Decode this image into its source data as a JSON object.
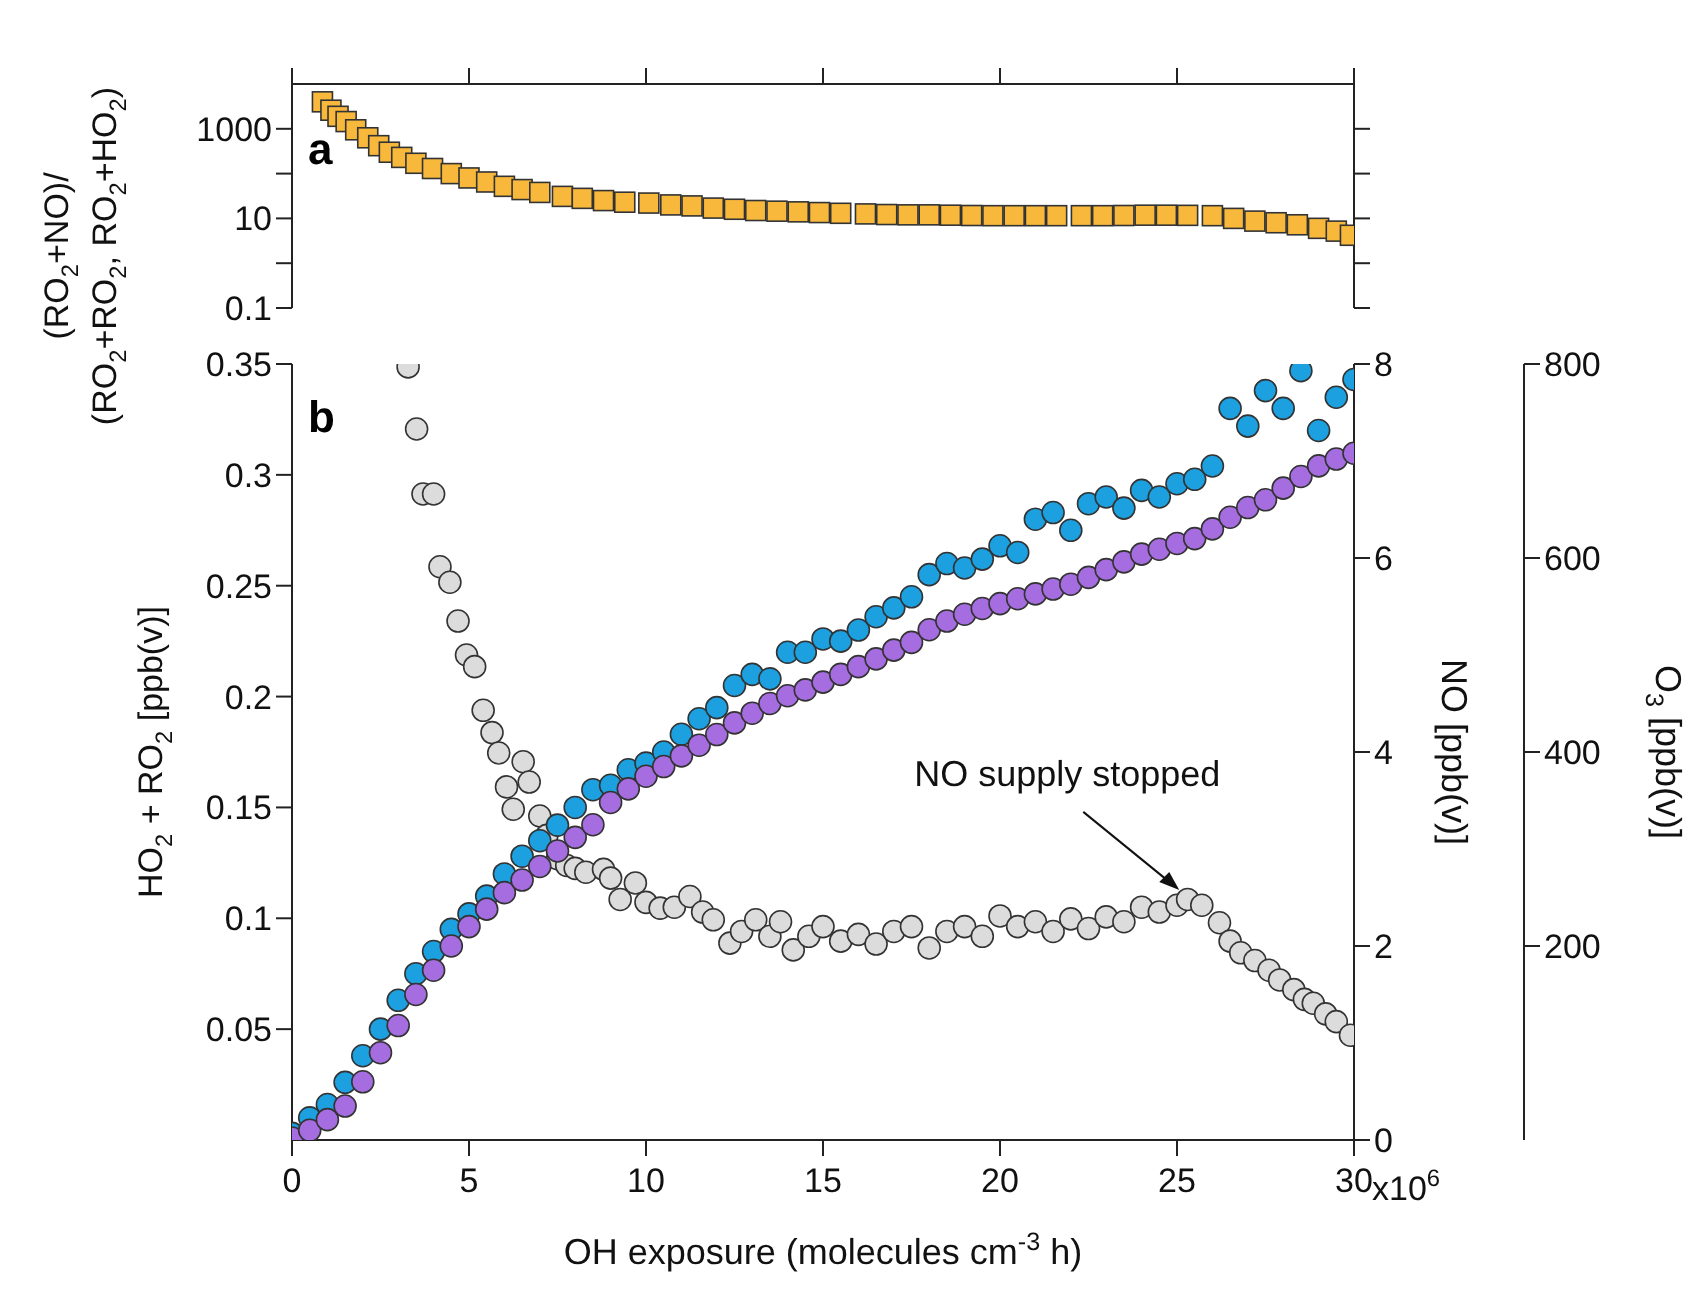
{
  "chart_data": [
    {
      "type": "scatter",
      "annotations": [
        "a"
      ],
      "ylabel": "(RO$_{2}$+NO)/\n(RO$_{2}$+RO$_{2}$, RO$_{2}$+HO$_{2}$)",
      "marker": "square",
      "log": "y",
      "tick_labels": "y",
      "xlim": [
        0,
        30
      ],
      "xticks": [
        0,
        5,
        10,
        15,
        20,
        25,
        30
      ],
      "ylim": [
        0.1,
        10000
      ],
      "yticks": [
        0.1,
        {
          "value": 1,
          "label": null
        },
        10,
        {
          "value": 100,
          "label": null
        },
        1000
      ],
      "series": [
        {
          "color": "#f7b83c",
          "x": [
            0.86,
            1.1,
            1.3,
            1.53,
            1.8,
            2.14,
            2.45,
            2.75,
            3.1,
            3.5,
            3.97,
            4.5,
            5.0,
            5.5,
            6.0,
            6.5,
            7.0,
            7.64,
            8.2,
            8.8,
            9.4,
            10.08,
            10.7,
            11.3,
            11.9,
            12.5,
            13.1,
            13.7,
            14.3,
            14.9,
            15.5,
            16.2,
            16.8,
            17.4,
            18,
            18.6,
            19.2,
            19.8,
            20.4,
            21,
            21.6,
            22.3,
            22.9,
            23.5,
            24.1,
            24.7,
            25.3,
            26,
            26.6,
            27.2,
            27.8,
            28.4,
            29,
            29.5,
            29.9
          ],
          "values": [
            4000,
            2600,
            1900,
            1450,
            950,
            630,
            420,
            300,
            230,
            170,
            130,
            100,
            80,
            65,
            52,
            44,
            38,
            31,
            28,
            25,
            23,
            22,
            20,
            19,
            17,
            16,
            15,
            14.5,
            14,
            13.5,
            13,
            12.6,
            12.2,
            12,
            12,
            11.8,
            11.6,
            11.5,
            11.5,
            11.5,
            11.5,
            11.5,
            11.5,
            11.6,
            11.8,
            11.8,
            11.7,
            11.5,
            10,
            8.7,
            8,
            7.2,
            6,
            5.2,
            4.2
          ]
        }
      ]
    },
    {
      "type": "scatter",
      "annotations": [
        "b",
        "NO supply stopped",
        "x10$^{6}$"
      ],
      "xlabel": "OH exposure (molecules cm$^{-3}$ h)",
      "ylabel": "HO$_{2}$ + RO$_{2}$ [ppb(v)]",
      "y2label": "NO [ppb(v)]",
      "y3label": "O$_{3}$ [ppb(v)]",
      "marker": "circle",
      "xlim": [
        0,
        30
      ],
      "xticks": [
        0,
        5,
        10,
        15,
        20,
        25,
        30
      ],
      "ylim": [
        0,
        0.35
      ],
      "yticks": [
        0.05,
        0.1,
        0.15,
        0.2,
        0.25,
        0.3,
        0.35
      ],
      "y2lim": [
        0,
        8
      ],
      "y2ticks": [
        0,
        2,
        4,
        6,
        8
      ],
      "y3lim": [
        0,
        800
      ],
      "y3ticks": [
        200,
        400,
        600,
        800
      ],
      "series": [
        {
          "color": "#dcdcdc",
          "axis": "y2",
          "x": [
            3.28,
            3.52,
            3.7,
            4.0,
            4.18,
            4.46,
            4.69,
            4.93,
            5.16,
            5.4,
            5.65,
            5.84,
            6.06,
            6.25,
            6.53,
            6.7,
            7.0,
            7.2,
            7.5,
            7.76,
            8.0,
            8.3,
            8.8,
            9.0,
            9.27,
            9.7,
            10.0,
            10.4,
            10.8,
            11.24,
            11.6,
            11.9,
            12.37,
            12.7,
            13.1,
            13.5,
            13.8,
            14.16,
            14.6,
            15.0,
            15.5,
            16.0,
            16.5,
            17.0,
            17.5,
            18.0,
            18.5,
            19.0,
            19.5,
            20.0,
            20.5,
            21.0,
            21.5,
            22.0,
            22.5,
            23.0,
            23.5,
            24.0,
            24.5,
            25.0,
            25.3,
            25.7,
            26.2,
            26.5,
            26.8,
            27.2,
            27.6,
            27.9,
            28.3,
            28.6,
            28.85,
            29.2,
            29.5,
            29.9
          ],
          "values": [
            7.97,
            7.33,
            6.66,
            6.66,
            5.91,
            5.75,
            5.35,
            5.0,
            4.88,
            4.43,
            4.2,
            3.99,
            3.64,
            3.41,
            3.9,
            3.69,
            3.34,
            3.14,
            2.9,
            2.83,
            2.8,
            2.76,
            2.79,
            2.7,
            2.48,
            2.65,
            2.45,
            2.39,
            2.4,
            2.51,
            2.35,
            2.27,
            2.03,
            2.15,
            2.27,
            2.1,
            2.25,
            1.96,
            2.1,
            2.2,
            2.05,
            2.12,
            2.02,
            2.15,
            2.2,
            1.98,
            2.15,
            2.2,
            2.1,
            2.31,
            2.2,
            2.25,
            2.15,
            2.28,
            2.18,
            2.3,
            2.25,
            2.4,
            2.35,
            2.42,
            2.48,
            2.42,
            2.24,
            2.05,
            1.93,
            1.85,
            1.75,
            1.65,
            1.55,
            1.45,
            1.41,
            1.3,
            1.22,
            1.08
          ]
        },
        {
          "color": "#1ca0e0",
          "axis": "y",
          "x": [
            0,
            0.5,
            1,
            1.5,
            2,
            2.5,
            3,
            3.5,
            4,
            4.5,
            5,
            5.5,
            6,
            6.5,
            7,
            7.5,
            8,
            8.5,
            9,
            9.5,
            10,
            10.5,
            11,
            11.5,
            12,
            12.5,
            13,
            13.5,
            14,
            14.5,
            15,
            15.5,
            16,
            16.5,
            17,
            17.5,
            18,
            18.5,
            19,
            19.5,
            20,
            20.5,
            21,
            21.5,
            22,
            22.5,
            23,
            23.5,
            24,
            24.5,
            25,
            25.5,
            26,
            26.5,
            27,
            27.5,
            28,
            28.5,
            29,
            29.5,
            30
          ],
          "values": [
            0.003,
            0.01,
            0.016,
            0.026,
            0.038,
            0.05,
            0.063,
            0.075,
            0.085,
            0.095,
            0.102,
            0.11,
            0.12,
            0.128,
            0.135,
            0.142,
            0.15,
            0.158,
            0.16,
            0.167,
            0.17,
            0.175,
            0.183,
            0.19,
            0.195,
            0.205,
            0.21,
            0.208,
            0.22,
            0.22,
            0.226,
            0.225,
            0.23,
            0.236,
            0.24,
            0.245,
            0.255,
            0.26,
            0.258,
            0.262,
            0.268,
            0.265,
            0.28,
            0.283,
            0.275,
            0.287,
            0.29,
            0.285,
            0.293,
            0.29,
            0.296,
            0.298,
            0.304,
            0.33,
            0.322,
            0.338,
            0.33,
            0.347,
            0.32,
            0.335,
            0.343
          ]
        },
        {
          "color": "#a56de0",
          "axis": "y3",
          "x": [
            0,
            0.5,
            1,
            1.5,
            2,
            2.5,
            3,
            3.5,
            4,
            4.5,
            5,
            5.5,
            6,
            6.5,
            7,
            7.5,
            8,
            8.5,
            9,
            9.5,
            10,
            10.5,
            11,
            11.5,
            12,
            12.5,
            13,
            13.5,
            14,
            14.5,
            15,
            15.5,
            16,
            16.5,
            17,
            17.5,
            18,
            18.5,
            19,
            19.5,
            20,
            20.5,
            21,
            21.5,
            22,
            22.5,
            23,
            23.5,
            24,
            24.5,
            25,
            25.5,
            26,
            26.5,
            27,
            27.5,
            28,
            28.5,
            29,
            29.5,
            30
          ],
          "values": [
            2,
            10,
            21,
            35,
            60,
            90,
            118,
            150,
            175,
            200,
            220,
            238,
            255,
            268,
            282,
            298,
            312,
            325,
            348,
            362,
            375,
            385,
            396,
            407,
            418,
            430,
            440,
            450,
            458,
            464,
            472,
            480,
            488,
            496,
            505,
            513,
            526,
            535,
            542,
            548,
            553,
            558,
            563,
            568,
            573,
            580,
            588,
            596,
            604,
            609,
            615,
            620,
            630,
            642,
            652,
            660,
            672,
            684,
            695,
            702,
            708
          ]
        }
      ]
    }
  ]
}
